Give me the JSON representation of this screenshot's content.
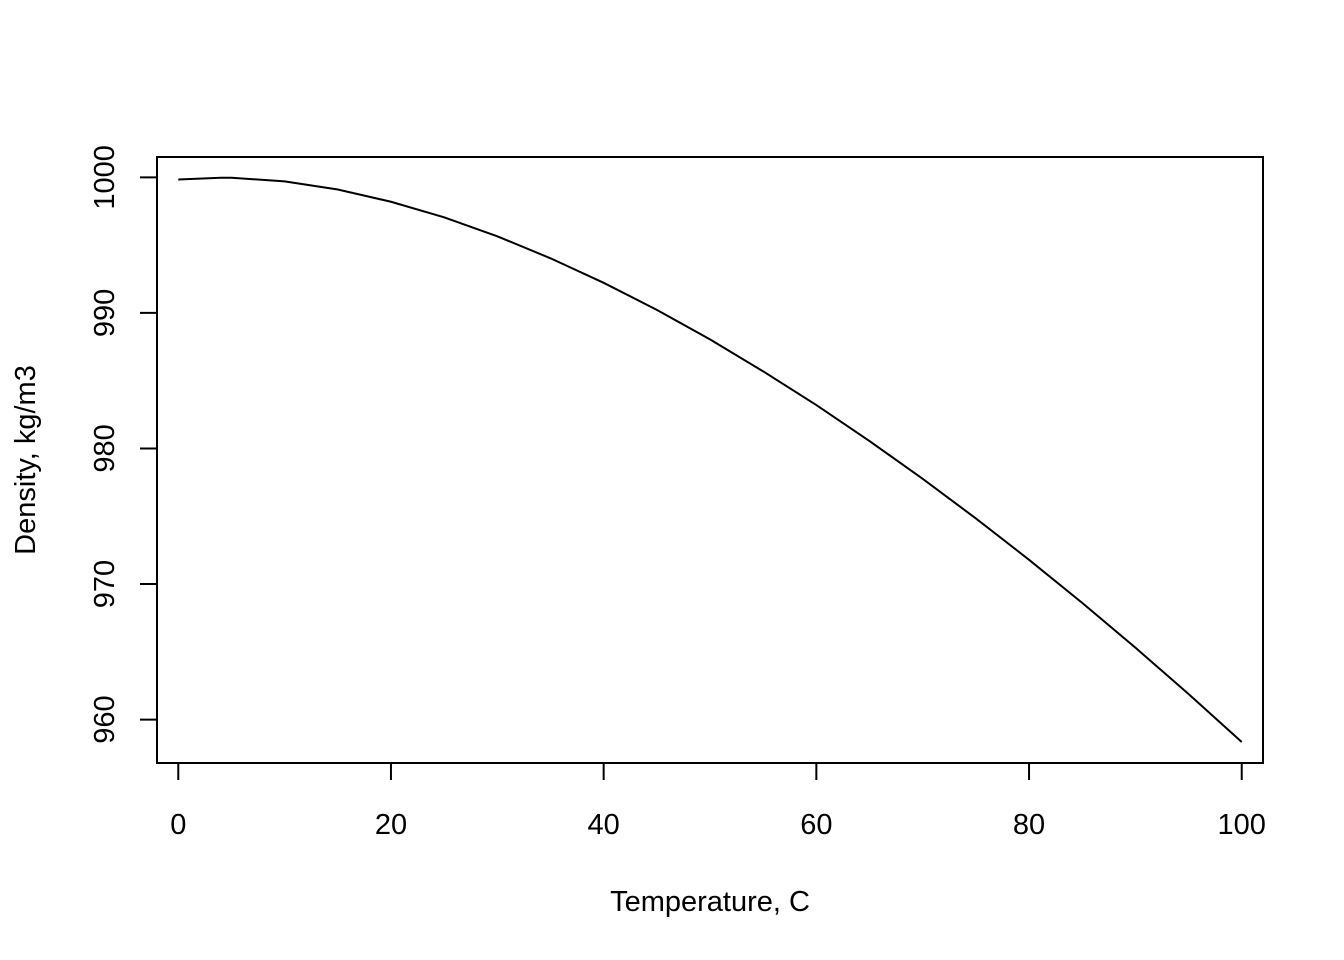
{
  "chart_data": {
    "type": "line",
    "title": "",
    "xlabel": "Temperature, C",
    "ylabel": "Density, kg/m3",
    "xlim": [
      -2,
      102
    ],
    "ylim": [
      956.8,
      1001.5
    ],
    "x_ticks": [
      0,
      20,
      40,
      60,
      80,
      100
    ],
    "y_ticks": [
      960,
      970,
      980,
      990,
      1000
    ],
    "grid": false,
    "legend": "none",
    "line_color": "#000000",
    "series": [
      {
        "x": [
          0,
          4,
          5,
          10,
          15,
          20,
          25,
          30,
          35,
          40,
          45,
          50,
          55,
          60,
          65,
          70,
          75,
          80,
          85,
          90,
          95,
          100
        ],
        "values": [
          999.84,
          999.97,
          999.97,
          999.7,
          999.1,
          998.2,
          997.05,
          995.65,
          994.03,
          992.22,
          990.22,
          988.05,
          985.69,
          983.2,
          980.55,
          977.76,
          974.84,
          971.79,
          968.61,
          965.31,
          961.89,
          958.35
        ]
      }
    ]
  }
}
